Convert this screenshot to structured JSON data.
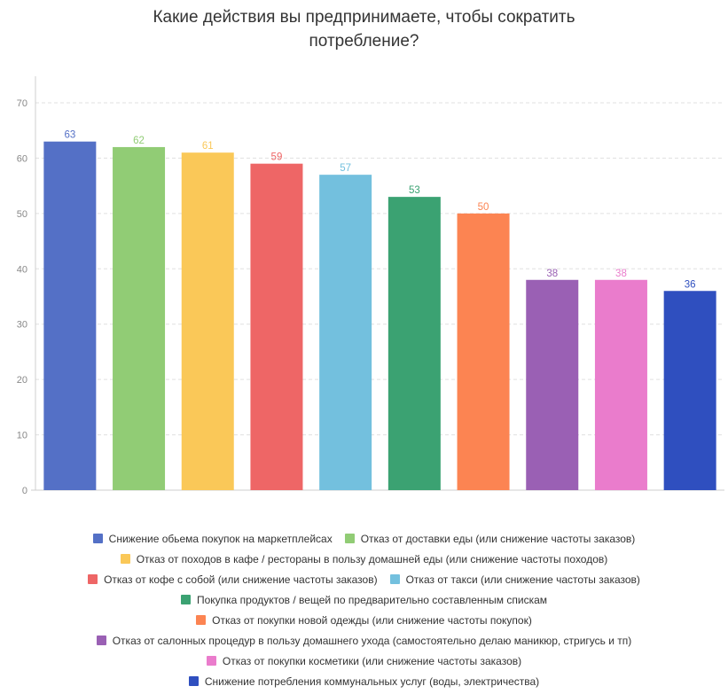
{
  "chart_data": {
    "type": "bar",
    "title_lines": [
      "Какие действия вы предпринимаете, чтобы сократить",
      "потребление?"
    ],
    "ylim": [
      0,
      70
    ],
    "yticks": [
      0,
      10,
      20,
      30,
      40,
      50,
      60,
      70
    ],
    "grid": true,
    "legend_position": "bottom",
    "series": [
      {
        "name": "Снижение обьема покупок на маркетплейсах",
        "value": 63,
        "color": "#5470c6"
      },
      {
        "name": "Отказ от доставки еды (или снижение частоты заказов)",
        "value": 62,
        "color": "#91cc75"
      },
      {
        "name": "Отказ от походов в кафе / рестораны в пользу домашней еды (или снижение частоты походов)",
        "value": 61,
        "color": "#fac858"
      },
      {
        "name": "Отказ от кофе с собой (или снижение частоты заказов)",
        "value": 59,
        "color": "#ee6666"
      },
      {
        "name": "Отказ от такси (или снижение частоты заказов)",
        "value": 57,
        "color": "#73c0de"
      },
      {
        "name": "Покупка продуктов / вещей по предварительно составленным спискам",
        "value": 53,
        "color": "#3ba272"
      },
      {
        "name": "Отказ от покупки новой одежды (или снижение частоты покупок)",
        "value": 50,
        "color": "#fc8452"
      },
      {
        "name": "Отказ от салонных процедур в пользу домашнего ухода (самостоятельно делаю маникюр, стригусь и тп)",
        "value": 38,
        "color": "#9a60b4"
      },
      {
        "name": "Отказ от покупки косметики (или снижение частоты заказов)",
        "value": 38,
        "color": "#ea7ccc"
      },
      {
        "name": "Снижение потребления коммунальных услуг (воды, электричества)",
        "value": 36,
        "color": "#2f4fbf"
      }
    ]
  }
}
